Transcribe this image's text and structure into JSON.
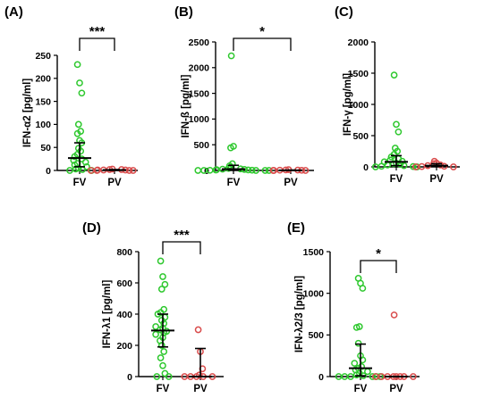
{
  "colors": {
    "FV": "#2ec82e",
    "PV": "#d94c4c",
    "axis": "#000000"
  },
  "chart_data": [
    {
      "type": "scatter",
      "panel": "(A)",
      "ylabel": "IFN-α2 [pg/ml]",
      "categories": [
        "FV",
        "PV"
      ],
      "ylim": [
        0,
        250
      ],
      "yticks": [
        "0",
        "50",
        "100",
        "150",
        "200",
        "250"
      ],
      "significance": "***",
      "series": [
        {
          "name": "FV",
          "values": [
            230,
            190,
            168,
            100,
            85,
            80,
            65,
            60,
            48,
            42,
            35,
            30,
            25,
            22,
            18,
            15,
            12,
            8,
            5,
            3,
            2,
            0,
            0
          ],
          "median": 27,
          "q1": 8,
          "q3": 60
        },
        {
          "name": "PV",
          "values": [
            3,
            2,
            2,
            1,
            1,
            1,
            0,
            0,
            0,
            0
          ],
          "median": 1,
          "q1": 0,
          "q3": 2
        }
      ]
    },
    {
      "type": "scatter",
      "panel": "(B)",
      "ylabel": "IFN-ß [pg/ml]",
      "categories": [
        "FV",
        "PV"
      ],
      "ylim": [
        0,
        2500
      ],
      "yticks": [
        "0",
        "500",
        "1000",
        "1500",
        "2000",
        "2500"
      ],
      "significance": "*",
      "series": [
        {
          "name": "FV",
          "values": [
            2230,
            470,
            440,
            130,
            90,
            60,
            40,
            30,
            25,
            20,
            15,
            10,
            8,
            5,
            3,
            0,
            0,
            0,
            0,
            0
          ],
          "median": 25,
          "q1": 5,
          "q3": 100
        },
        {
          "name": "PV",
          "values": [
            15,
            10,
            8,
            5,
            3,
            0,
            0,
            0
          ],
          "median": 3,
          "q1": 0,
          "q3": 8
        }
      ]
    },
    {
      "type": "scatter",
      "panel": "(C)",
      "ylabel": "IFN-γ [pg/ml]",
      "categories": [
        "FV",
        "PV"
      ],
      "ylim": [
        0,
        2000
      ],
      "yticks": [
        "0",
        "500",
        "1000",
        "1500",
        "2000"
      ],
      "significance": "",
      "series": [
        {
          "name": "FV",
          "values": [
            1470,
            680,
            560,
            300,
            250,
            200,
            160,
            130,
            110,
            90,
            80,
            60,
            50,
            40,
            30,
            20,
            10,
            5,
            0,
            0
          ],
          "median": 80,
          "q1": 20,
          "q3": 180
        },
        {
          "name": "PV",
          "values": [
            90,
            60,
            50,
            30,
            20,
            10,
            5,
            0,
            0
          ],
          "median": 20,
          "q1": 5,
          "q3": 50
        }
      ]
    },
    {
      "type": "scatter",
      "panel": "(D)",
      "ylabel": "IFN-λ1 [pg/ml]",
      "categories": [
        "FV",
        "PV"
      ],
      "ylim": [
        0,
        800
      ],
      "yticks": [
        "0",
        "200",
        "400",
        "600",
        "800"
      ],
      "significance": "***",
      "series": [
        {
          "name": "FV",
          "values": [
            740,
            640,
            590,
            560,
            430,
            410,
            400,
            380,
            360,
            340,
            320,
            310,
            300,
            290,
            280,
            270,
            250,
            230,
            200,
            160,
            120,
            70,
            20,
            0,
            0
          ],
          "median": 295,
          "q1": 190,
          "q3": 400
        },
        {
          "name": "PV",
          "values": [
            300,
            160,
            50,
            10,
            0,
            0,
            0,
            0,
            0
          ],
          "median": 0,
          "q1": 0,
          "q3": 180
        }
      ]
    },
    {
      "type": "scatter",
      "panel": "(E)",
      "ylabel": "IFN-λ2/3 [pg/ml]",
      "categories": [
        "FV",
        "PV"
      ],
      "ylim": [
        0,
        1500
      ],
      "yticks": [
        "0",
        "500",
        "1000",
        "1500"
      ],
      "significance": "*",
      "series": [
        {
          "name": "FV",
          "values": [
            1180,
            1120,
            1060,
            600,
            590,
            400,
            250,
            200,
            160,
            120,
            100,
            80,
            60,
            40,
            20,
            10,
            0,
            0,
            0,
            0,
            0,
            0
          ],
          "median": 100,
          "q1": 10,
          "q3": 390
        },
        {
          "name": "PV",
          "values": [
            740,
            0,
            0,
            0,
            0,
            0,
            0,
            0,
            0
          ],
          "median": 0,
          "q1": 0,
          "q3": 0
        }
      ]
    }
  ]
}
